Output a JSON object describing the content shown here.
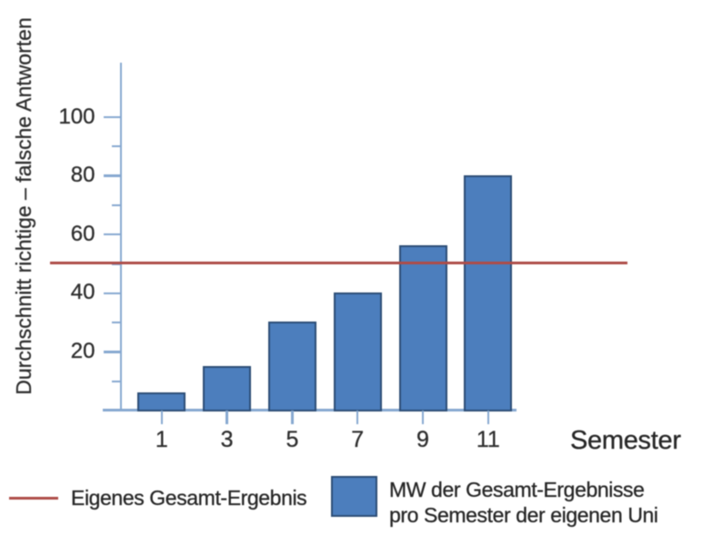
{
  "chart_data": {
    "type": "bar",
    "title": "",
    "categories": [
      "1",
      "3",
      "5",
      "7",
      "9",
      "11"
    ],
    "values": [
      6,
      15,
      30,
      40,
      56,
      80
    ],
    "xlabel": "Semester",
    "ylabel": "Durchschnitt richtige – falsche Antworten",
    "ylim": [
      0,
      118
    ],
    "y_major_ticks": [
      20,
      40,
      60,
      80,
      100
    ],
    "y_minor_ticks": [
      10,
      30,
      50,
      70,
      90
    ],
    "grid": false,
    "legend_position": "bottom",
    "reference_line": {
      "value": 50,
      "label": "Eigenes Gesamt-Ergebnis",
      "color": "#ae4c48"
    },
    "series": [
      {
        "name": "MW der Gesamt-Ergebnisse pro Semester der eigenen Uni",
        "values": [
          6,
          15,
          30,
          40,
          56,
          80
        ]
      }
    ],
    "legend": {
      "line_item_label": "Eigenes Gesamt-Ergebnis",
      "bar_item_label_line1": "MW der Gesamt-Ergebnisse",
      "bar_item_label_line2": "pro Semester der eigenen Uni"
    },
    "colors": {
      "bar_fill": "#4c7ebd",
      "bar_border": "#2c4d76",
      "axis": "#86a8d0",
      "reference_line": "#ae4c48",
      "text": "#2e2e2e"
    }
  }
}
